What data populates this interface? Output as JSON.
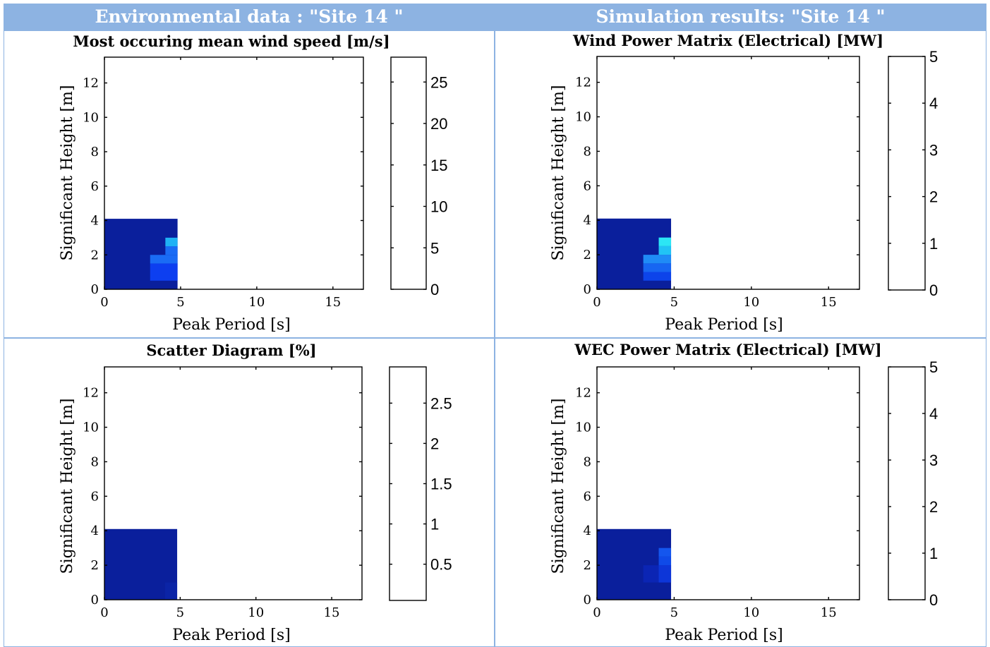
{
  "headers": {
    "left": "Environmental data : \"Site 14 \"",
    "right": "Simulation results: \"Site 14 \""
  },
  "colors": {
    "header_bg": "#8db3e2",
    "header_text": "#ffffff",
    "grid_line": "#8db3e2"
  },
  "chart_data": [
    {
      "type": "heatmap",
      "title": "Most occuring mean wind speed [m/s]",
      "xlabel": "Peak Period [s]",
      "ylabel": "Significant Height [m]",
      "xlim": [
        0,
        17
      ],
      "ylim": [
        0,
        13.5
      ],
      "xticks": [
        "0",
        "5",
        "10",
        "15"
      ],
      "yticks": [
        "0",
        "2",
        "4",
        "6",
        "8",
        "10",
        "12"
      ],
      "colorbar": {
        "lim": [
          0,
          28
        ],
        "ticks": [
          "0",
          "5",
          "10",
          "15",
          "20",
          "25"
        ]
      },
      "cells": [
        {
          "x": [
            0,
            4.8
          ],
          "y": [
            0,
            4.1
          ],
          "color": "#0a1f9c"
        },
        {
          "x": [
            3,
            4.8
          ],
          "y": [
            0.5,
            1.5
          ],
          "color": "#0d3ff0"
        },
        {
          "x": [
            3,
            4.8
          ],
          "y": [
            1.5,
            2
          ],
          "color": "#1a6cf5"
        },
        {
          "x": [
            4,
            4.8
          ],
          "y": [
            2,
            2.5
          ],
          "color": "#1a6cf5"
        },
        {
          "x": [
            4,
            4.8
          ],
          "y": [
            2.5,
            3
          ],
          "color": "#1fb2f5"
        }
      ]
    },
    {
      "type": "heatmap",
      "title": "Wind Power Matrix (Electrical) [MW]",
      "xlabel": "Peak Period [s]",
      "ylabel": "Significant Height [m]",
      "xlim": [
        0,
        17
      ],
      "ylim": [
        0,
        13.5
      ],
      "xticks": [
        "0",
        "5",
        "10",
        "15"
      ],
      "yticks": [
        "0",
        "2",
        "4",
        "6",
        "8",
        "10",
        "12"
      ],
      "colorbar": {
        "lim": [
          0,
          5
        ],
        "ticks": [
          "0",
          "1",
          "2",
          "3",
          "4",
          "5"
        ]
      },
      "cells": [
        {
          "x": [
            0,
            4.8
          ],
          "y": [
            0,
            4.1
          ],
          "color": "#0a1f9c"
        },
        {
          "x": [
            3,
            4.8
          ],
          "y": [
            0.5,
            1
          ],
          "color": "#0d44ea"
        },
        {
          "x": [
            3,
            4.8
          ],
          "y": [
            1,
            1.5
          ],
          "color": "#1766f2"
        },
        {
          "x": [
            3,
            4.8
          ],
          "y": [
            1.5,
            2
          ],
          "color": "#1f8bf6"
        },
        {
          "x": [
            4,
            4.8
          ],
          "y": [
            2,
            2.5
          ],
          "color": "#21c3f5"
        },
        {
          "x": [
            4,
            4.8
          ],
          "y": [
            2.5,
            3
          ],
          "color": "#2ce6f5"
        }
      ]
    },
    {
      "type": "heatmap",
      "title": "Scatter Diagram [%]",
      "xlabel": "Peak Period [s]",
      "ylabel": "Significant Height [m]",
      "xlim": [
        0,
        17
      ],
      "ylim": [
        0,
        13.5
      ],
      "xticks": [
        "0",
        "5",
        "10",
        "15"
      ],
      "yticks": [
        "0",
        "2",
        "4",
        "6",
        "8",
        "10",
        "12"
      ],
      "colorbar": {
        "lim": [
          0.05,
          2.95
        ],
        "ticks": [
          "0.5",
          "1",
          "1.5",
          "2",
          "2.5"
        ]
      },
      "cells": [
        {
          "x": [
            0,
            4.8
          ],
          "y": [
            0,
            4.1
          ],
          "color": "#0a1f9c"
        },
        {
          "x": [
            4,
            4.8
          ],
          "y": [
            0,
            1
          ],
          "color": "#0b24a6"
        }
      ]
    },
    {
      "type": "heatmap",
      "title": "WEC Power Matrix (Electrical) [MW]",
      "xlabel": "Peak Period [s]",
      "ylabel": "Significant Height [m]",
      "xlim": [
        0,
        17
      ],
      "ylim": [
        0,
        13.5
      ],
      "xticks": [
        "0",
        "5",
        "10",
        "15"
      ],
      "yticks": [
        "0",
        "2",
        "4",
        "6",
        "8",
        "10",
        "12"
      ],
      "colorbar": {
        "lim": [
          0,
          5
        ],
        "ticks": [
          "0",
          "1",
          "2",
          "3",
          "4",
          "5"
        ]
      },
      "cells": [
        {
          "x": [
            0,
            4.8
          ],
          "y": [
            0,
            4.1
          ],
          "color": "#0a1f9c"
        },
        {
          "x": [
            3,
            4.8
          ],
          "y": [
            1,
            2
          ],
          "color": "#0b25b4"
        },
        {
          "x": [
            4,
            4.8
          ],
          "y": [
            1,
            2
          ],
          "color": "#0d36d8"
        },
        {
          "x": [
            4,
            4.8
          ],
          "y": [
            2,
            2.5
          ],
          "color": "#0f4ae8"
        },
        {
          "x": [
            4,
            4.8
          ],
          "y": [
            2.5,
            3
          ],
          "color": "#1456ee"
        }
      ]
    }
  ]
}
